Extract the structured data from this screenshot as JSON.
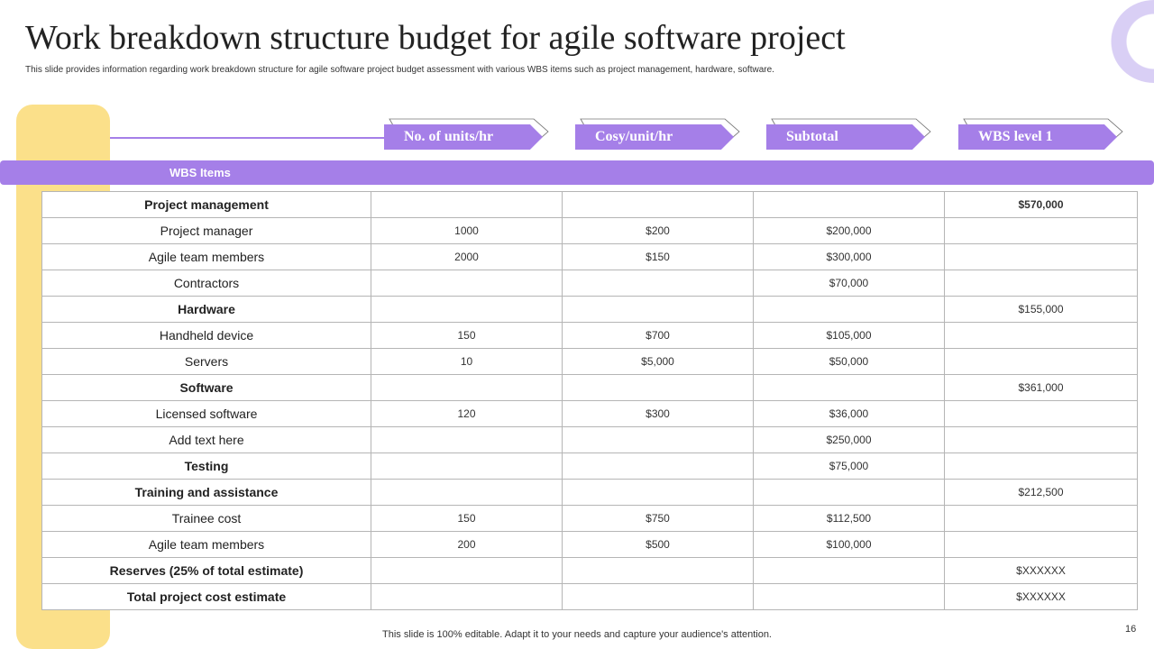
{
  "title": "Work breakdown structure budget for agile software project",
  "subtitle": "This slide provides information regarding work breakdown structure for agile software project budget assessment with various WBS items such as project management, hardware, software.",
  "headers": [
    "No. of units/hr",
    "Cosy/unit/hr",
    "Subtotal",
    "WBS level 1"
  ],
  "wbs_label": "WBS Items",
  "rows": [
    {
      "name": "Project management",
      "bold": true,
      "units": "",
      "cost": "",
      "subtotal": "",
      "level1": "$570,000",
      "level1_bold": true
    },
    {
      "name": "Project manager",
      "bold": false,
      "units": "1000",
      "cost": "$200",
      "subtotal": "$200,000",
      "level1": ""
    },
    {
      "name": "Agile team members",
      "bold": false,
      "units": "2000",
      "cost": "$150",
      "subtotal": "$300,000",
      "level1": ""
    },
    {
      "name": "Contractors",
      "bold": false,
      "units": "",
      "cost": "",
      "subtotal": "$70,000",
      "level1": ""
    },
    {
      "name": "Hardware",
      "bold": true,
      "units": "",
      "cost": "",
      "subtotal": "",
      "level1": "$155,000"
    },
    {
      "name": "Handheld device",
      "bold": false,
      "units": "150",
      "cost": "$700",
      "subtotal": "$105,000",
      "level1": ""
    },
    {
      "name": "Servers",
      "bold": false,
      "units": "10",
      "cost": "$5,000",
      "subtotal": "$50,000",
      "level1": ""
    },
    {
      "name": "Software",
      "bold": true,
      "units": "",
      "cost": "",
      "subtotal": "",
      "level1": "$361,000"
    },
    {
      "name": "Licensed software",
      "bold": false,
      "units": "120",
      "cost": "$300",
      "subtotal": "$36,000",
      "level1": ""
    },
    {
      "name": "Add text here",
      "bold": false,
      "units": "",
      "cost": "",
      "subtotal": "$250,000",
      "level1": ""
    },
    {
      "name": "Testing",
      "bold": true,
      "units": "",
      "cost": "",
      "subtotal": "$75,000",
      "level1": ""
    },
    {
      "name": "Training and assistance",
      "bold": true,
      "units": "",
      "cost": "",
      "subtotal": "",
      "level1": "$212,500"
    },
    {
      "name": "Trainee cost",
      "bold": false,
      "units": "150",
      "cost": "$750",
      "subtotal": "$112,500",
      "level1": ""
    },
    {
      "name": "Agile team members",
      "bold": false,
      "units": "200",
      "cost": "$500",
      "subtotal": "$100,000",
      "level1": ""
    },
    {
      "name": "Reserves (25% of total estimate)",
      "bold": true,
      "units": "",
      "cost": "",
      "subtotal": "",
      "level1": "$XXXXXX"
    },
    {
      "name": "Total project cost estimate",
      "bold": true,
      "units": "",
      "cost": "",
      "subtotal": "",
      "level1": "$XXXXXX"
    }
  ],
  "footer": "This slide is 100% editable. Adapt it to your needs and capture your audience's attention.",
  "page_number": "16",
  "colors": {
    "accent": "#a57fe8",
    "sidebar": "#fbe08a",
    "ring": "#d9cff5"
  }
}
